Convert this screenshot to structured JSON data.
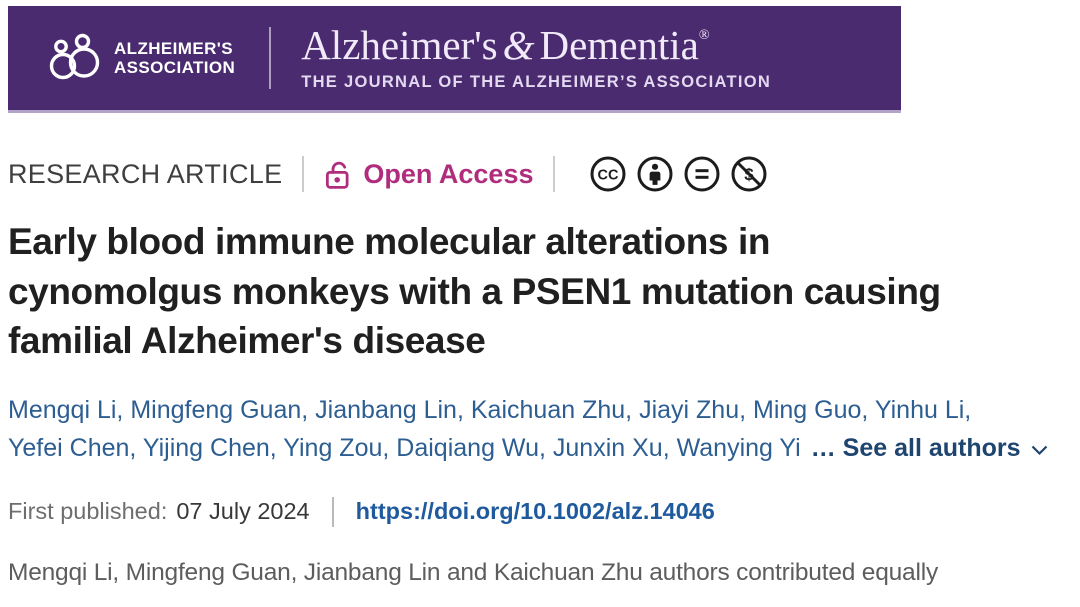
{
  "banner": {
    "bg_color": "#4b2b70",
    "logo": {
      "line1": "ALZHEIMER'S",
      "line2": "ASSOCIATION"
    },
    "journal": {
      "title_part1": "Alzheimer's",
      "title_amp": "&",
      "title_part2": "Dementia",
      "registered_mark": "®",
      "subtitle": "THE JOURNAL OF THE ALZHEIMER’S ASSOCIATION"
    }
  },
  "meta": {
    "article_type": "RESEARCH ARTICLE",
    "open_access_label": "Open Access",
    "open_access_color": "#b02d7e",
    "license_icons": [
      "cc-icon",
      "cc-by-attribution-icon",
      "cc-nd-no-derivatives-icon",
      "cc-nc-non-commercial-icon"
    ]
  },
  "title_lines": [
    "Early blood immune molecular alterations in",
    "cynomolgus monkeys with a PSEN1 mutation causing",
    "familial Alzheimer's disease"
  ],
  "authors": {
    "line1": [
      "Mengqi Li",
      "Mingfeng Guan",
      "Jianbang Lin",
      "Kaichuan Zhu",
      "Jiayi Zhu",
      "Ming Guo",
      "Yinhu Li"
    ],
    "line2": [
      "Yefei Chen",
      "Yijing Chen",
      "Ying Zou",
      "Daiqiang Wu",
      "Junxin Xu",
      "Wanying Yi"
    ],
    "see_all_label": "… See all authors"
  },
  "publication": {
    "first_published_label": "First published:",
    "date": "07 July 2024",
    "doi_url": "https://doi.org/10.1002/alz.14046"
  },
  "contribution_note": "Mengqi Li, Mingfeng Guan, Jianbang Lin and Kaichuan Zhu authors contributed equally"
}
